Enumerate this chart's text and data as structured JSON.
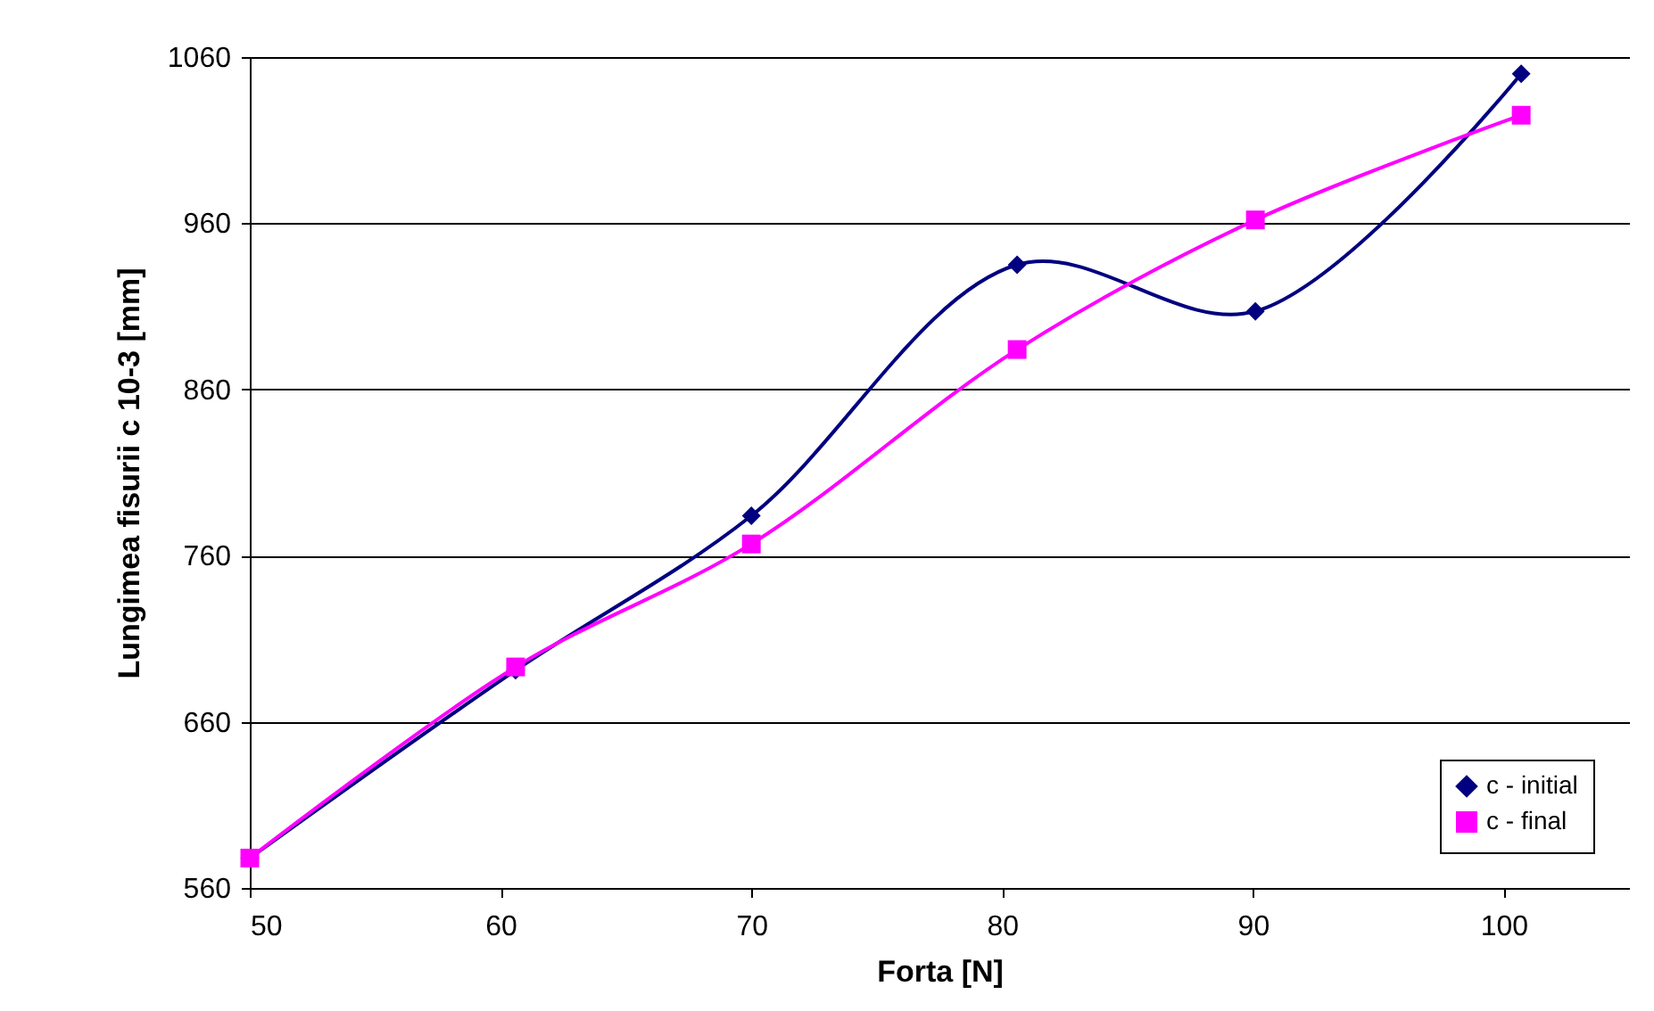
{
  "chart_data": {
    "type": "line",
    "xlabel": "Forta [N]",
    "ylabel": "Lungimea fisurii c 10-3 [mm]",
    "xlim": [
      50,
      105
    ],
    "xticks": [
      50,
      60,
      70,
      80,
      90,
      100
    ],
    "ylim": [
      560,
      1060
    ],
    "yticks": [
      560,
      660,
      760,
      860,
      960,
      1060
    ],
    "grid": "y",
    "legend": "bottom right",
    "line_style": "solid",
    "series": [
      {
        "name": "c - initial",
        "color": "#000080",
        "marker": "diamond",
        "x": [
          50,
          60.6,
          70,
          80.6,
          90.1,
          100.7
        ],
        "values": [
          578,
          691,
          784,
          935,
          907,
          1050
        ]
      },
      {
        "name": "c - final",
        "color": "#ff00ff",
        "marker": "square",
        "x": [
          50,
          60.6,
          70,
          80.6,
          90.1,
          100.7
        ],
        "values": [
          578,
          693,
          767,
          884,
          962,
          1025
        ]
      }
    ]
  }
}
